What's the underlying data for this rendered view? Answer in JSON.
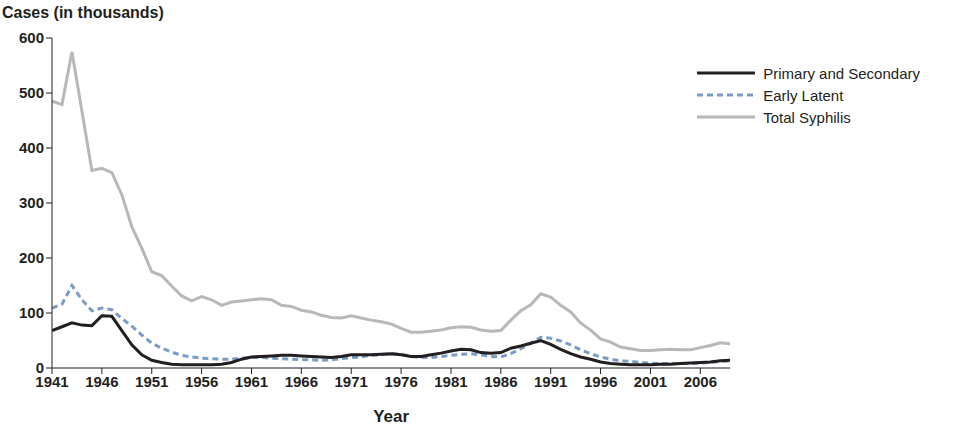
{
  "chart_data": {
    "type": "line",
    "y_label": "Cases (in thousands)",
    "x_label": "Year",
    "x": [
      1941,
      1942,
      1943,
      1944,
      1945,
      1946,
      1947,
      1948,
      1949,
      1950,
      1951,
      1952,
      1953,
      1954,
      1955,
      1956,
      1957,
      1958,
      1959,
      1960,
      1961,
      1962,
      1963,
      1964,
      1965,
      1966,
      1967,
      1968,
      1969,
      1970,
      1971,
      1972,
      1973,
      1974,
      1975,
      1976,
      1977,
      1978,
      1979,
      1980,
      1981,
      1982,
      1983,
      1984,
      1985,
      1986,
      1987,
      1988,
      1989,
      1990,
      1991,
      1992,
      1993,
      1994,
      1995,
      1996,
      1997,
      1998,
      1999,
      2000,
      2001,
      2002,
      2003,
      2004,
      2005,
      2006,
      2007,
      2008,
      2009
    ],
    "series": [
      {
        "name": "Primary and Secondary",
        "color": "#231f20",
        "line_style": "solid",
        "marker": "none",
        "values": [
          68,
          75,
          82,
          78,
          77,
          95,
          94,
          68,
          42,
          24,
          14,
          10,
          7,
          6,
          6,
          6,
          6,
          7,
          10,
          16,
          20,
          21,
          22,
          23,
          23,
          22,
          21,
          20,
          19,
          21,
          24,
          24,
          24,
          25,
          26,
          24,
          21,
          21,
          24,
          27,
          31,
          34,
          33,
          28,
          27,
          28,
          36,
          40,
          45,
          50,
          43,
          34,
          26,
          20,
          16,
          11,
          8,
          7,
          6,
          6,
          6,
          7,
          7,
          8,
          9,
          10,
          11,
          13,
          14
        ]
      },
      {
        "name": "Early Latent",
        "color": "#7a9cc6",
        "line_style": "dashed",
        "marker": "none",
        "values": [
          109,
          116,
          150,
          124,
          104,
          109,
          106,
          90,
          76,
          60,
          45,
          36,
          29,
          23,
          20,
          18,
          17,
          16,
          16,
          18,
          19,
          19,
          18,
          17,
          16,
          15,
          15,
          14,
          15,
          17,
          19,
          20,
          23,
          24,
          26,
          25,
          21,
          19,
          19,
          21,
          23,
          25,
          26,
          24,
          21,
          20,
          26,
          35,
          45,
          56,
          54,
          49,
          42,
          33,
          26,
          20,
          16,
          13,
          12,
          10,
          9,
          8,
          8,
          8,
          8,
          9,
          10,
          12,
          13
        ]
      },
      {
        "name": "Total Syphilis",
        "color": "#b8b8b8",
        "line_style": "solid",
        "marker": "none",
        "values": [
          485,
          479,
          575,
          467,
          359,
          363,
          355,
          315,
          257,
          218,
          175,
          168,
          149,
          131,
          122,
          130,
          124,
          114,
          120,
          122,
          124,
          126,
          124,
          114,
          112,
          105,
          102,
          96,
          92,
          91,
          95,
          91,
          87,
          84,
          80,
          72,
          65,
          65,
          67,
          69,
          73,
          75,
          74,
          69,
          67,
          68,
          87,
          104,
          115,
          135,
          129,
          114,
          102,
          82,
          69,
          53,
          47,
          38,
          35,
          32,
          32,
          33,
          34,
          33,
          33,
          37,
          41,
          46,
          44
        ]
      }
    ],
    "xlim": [
      1941,
      2009
    ],
    "xticks": [
      1941,
      1946,
      1951,
      1956,
      1961,
      1966,
      1971,
      1976,
      1981,
      1986,
      1991,
      1996,
      2001,
      2006
    ],
    "ylim": [
      0,
      600
    ],
    "yticks": [
      0,
      100,
      200,
      300,
      400,
      500,
      600
    ],
    "grid": false,
    "legend": "upper right"
  }
}
